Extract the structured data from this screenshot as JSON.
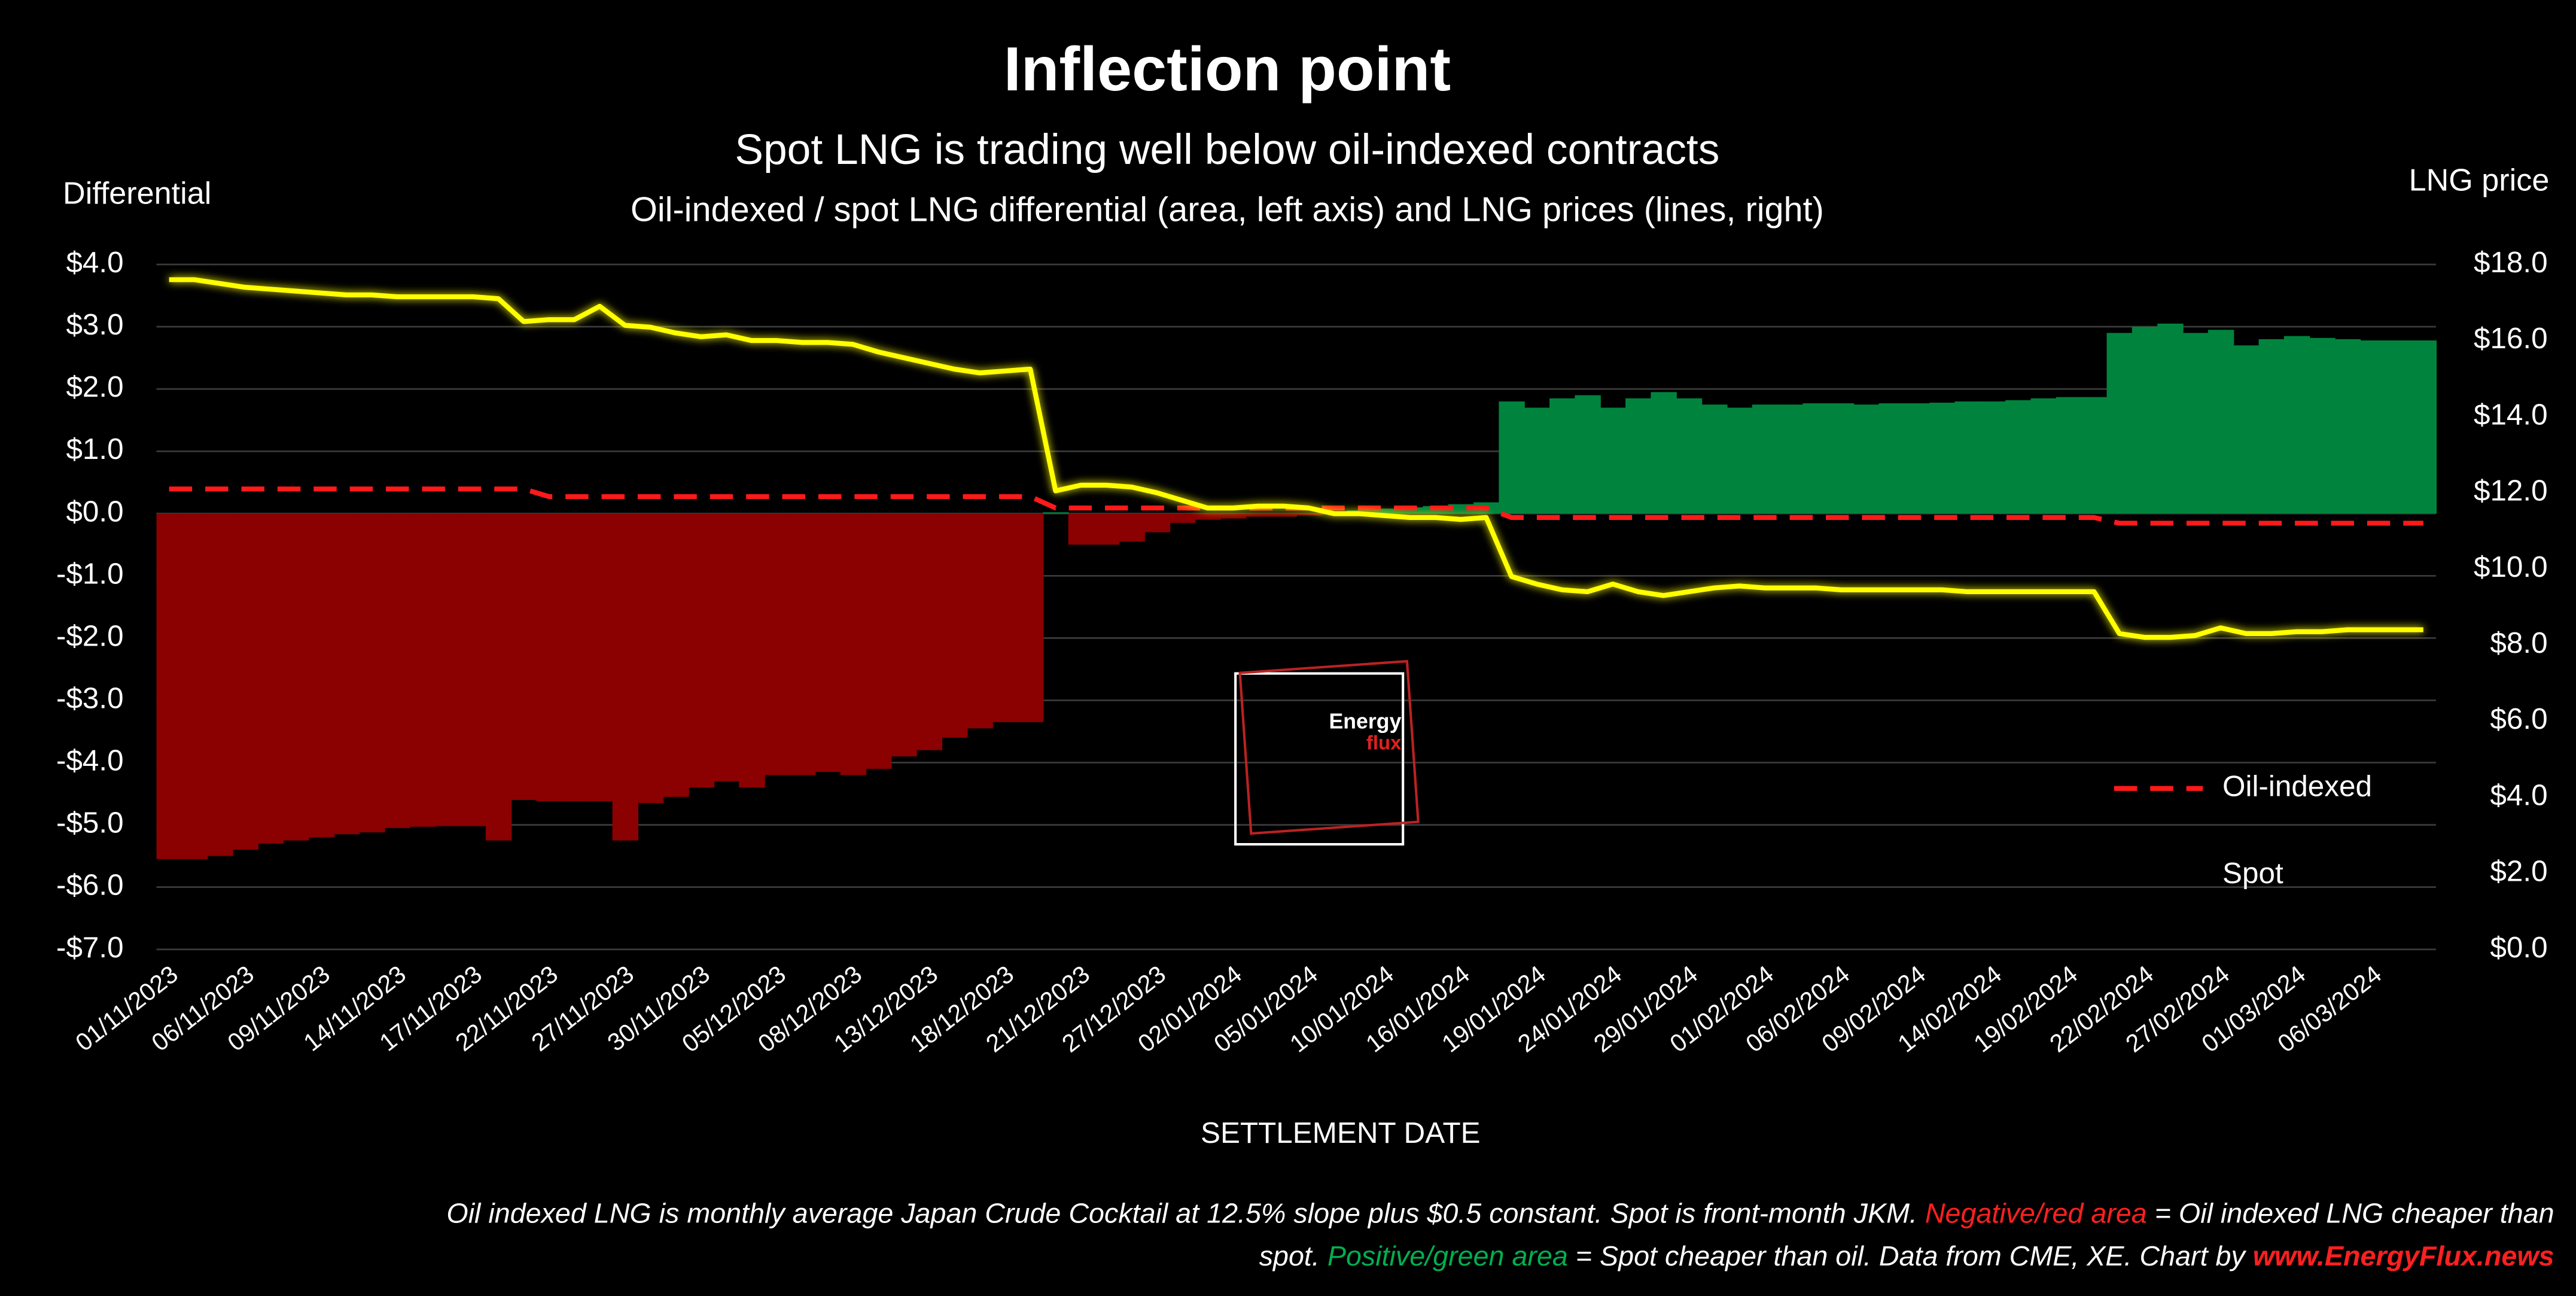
{
  "chart_data": {
    "type": "bar",
    "title": "Inflection point",
    "subtitle": "Spot LNG is trading well below oil-indexed contracts",
    "description": "Oil-indexed / spot LNG differential (area, left axis) and LNG prices (lines, right)",
    "y_label": "Differential",
    "y2_label": "LNG price",
    "x_label": "SETTLEMENT DATE",
    "categories": [
      "01/11/2023",
      null,
      null,
      "06/11/2023",
      null,
      null,
      "09/11/2023",
      null,
      null,
      "14/11/2023",
      null,
      null,
      "17/11/2023",
      null,
      null,
      "22/11/2023",
      null,
      null,
      "27/11/2023",
      null,
      null,
      "30/11/2023",
      null,
      null,
      "05/12/2023",
      null,
      null,
      "08/12/2023",
      null,
      null,
      "13/12/2023",
      null,
      null,
      "18/12/2023",
      null,
      null,
      "21/12/2023",
      null,
      null,
      "27/12/2023",
      null,
      null,
      "02/01/2024",
      null,
      null,
      "05/01/2024",
      null,
      null,
      "10/01/2024",
      null,
      null,
      "16/01/2024",
      null,
      null,
      "19/01/2024",
      null,
      null,
      "24/01/2024",
      null,
      null,
      "29/01/2024",
      null,
      null,
      "01/02/2024",
      null,
      null,
      "06/02/2024",
      null,
      null,
      "09/02/2024",
      null,
      null,
      "14/02/2024",
      null,
      null,
      "19/02/2024",
      null,
      null,
      "22/02/2024",
      null,
      null,
      "27/02/2024",
      null,
      null,
      "01/03/2024",
      null,
      null,
      "06/03/2024",
      null,
      null
    ],
    "bars": {
      "positive_color": "#00843d",
      "negative_color": "#8b0000",
      "values": [
        -5.55,
        -5.55,
        -5.5,
        -5.4,
        -5.3,
        -5.25,
        -5.2,
        -5.15,
        -5.12,
        -5.05,
        -5.03,
        -5.02,
        -5.02,
        -5.25,
        -4.6,
        -4.62,
        -4.62,
        -4.62,
        -5.25,
        -4.65,
        -4.55,
        -4.4,
        -4.3,
        -4.4,
        -4.2,
        -4.2,
        -4.15,
        -4.2,
        -4.1,
        -3.9,
        -3.8,
        -3.6,
        -3.45,
        -3.35,
        -3.35,
        0.02,
        -0.5,
        -0.5,
        -0.45,
        -0.3,
        -0.15,
        -0.1,
        -0.08,
        -0.05,
        -0.05,
        -0.03,
        0.02,
        0.05,
        0.08,
        0.1,
        0.12,
        0.15,
        0.18,
        1.8,
        1.7,
        1.85,
        1.9,
        1.7,
        1.85,
        1.95,
        1.85,
        1.75,
        1.7,
        1.75,
        1.75,
        1.77,
        1.77,
        1.75,
        1.77,
        1.77,
        1.78,
        1.8,
        1.8,
        1.82,
        1.85,
        1.87,
        1.87,
        2.9,
        3.0,
        3.05,
        2.9,
        2.95,
        2.7,
        2.8,
        2.85,
        2.82,
        2.8,
        2.78,
        2.78,
        2.78
      ]
    },
    "series": [
      {
        "name": "Oil-indexed",
        "color": "#ff1a1a",
        "dashed": true,
        "axis": "y2",
        "values": [
          12.1,
          12.1,
          12.1,
          12.1,
          12.1,
          12.1,
          12.1,
          12.1,
          12.1,
          12.1,
          12.1,
          12.1,
          12.1,
          12.1,
          12.1,
          11.9,
          11.9,
          11.9,
          11.9,
          11.9,
          11.9,
          11.9,
          11.9,
          11.9,
          11.9,
          11.9,
          11.9,
          11.9,
          11.9,
          11.9,
          11.9,
          11.9,
          11.9,
          11.9,
          11.9,
          11.6,
          11.6,
          11.6,
          11.6,
          11.6,
          11.6,
          11.6,
          11.6,
          11.6,
          11.6,
          11.6,
          11.6,
          11.6,
          11.6,
          11.6,
          11.6,
          11.6,
          11.6,
          11.35,
          11.35,
          11.35,
          11.35,
          11.35,
          11.35,
          11.35,
          11.35,
          11.35,
          11.35,
          11.35,
          11.35,
          11.35,
          11.35,
          11.35,
          11.35,
          11.35,
          11.35,
          11.35,
          11.35,
          11.35,
          11.35,
          11.35,
          11.35,
          11.2,
          11.2,
          11.2,
          11.2,
          11.2,
          11.2,
          11.2,
          11.2,
          11.2,
          11.2,
          11.2,
          11.2,
          11.2
        ]
      },
      {
        "name": "Spot",
        "color": "#ffff00",
        "dashed": false,
        "axis": "y2",
        "values": [
          17.6,
          17.6,
          17.5,
          17.4,
          17.35,
          17.3,
          17.25,
          17.2,
          17.2,
          17.15,
          17.15,
          17.15,
          17.15,
          17.1,
          16.5,
          16.55,
          16.55,
          16.9,
          16.4,
          16.35,
          16.2,
          16.1,
          16.15,
          16.0,
          16.0,
          15.95,
          15.95,
          15.9,
          15.7,
          15.55,
          15.4,
          15.25,
          15.15,
          15.2,
          15.25,
          12.05,
          12.2,
          12.2,
          12.15,
          12.0,
          11.8,
          11.6,
          11.6,
          11.65,
          11.65,
          11.6,
          11.45,
          11.45,
          11.4,
          11.35,
          11.35,
          11.3,
          11.35,
          9.8,
          9.6,
          9.45,
          9.4,
          9.6,
          9.4,
          9.3,
          9.4,
          9.5,
          9.55,
          9.5,
          9.5,
          9.5,
          9.45,
          9.45,
          9.45,
          9.45,
          9.45,
          9.4,
          9.4,
          9.4,
          9.4,
          9.4,
          9.4,
          8.3,
          8.2,
          8.2,
          8.25,
          8.45,
          8.3,
          8.3,
          8.35,
          8.35,
          8.4,
          8.4,
          8.4,
          8.4
        ]
      }
    ],
    "ylim": [
      -7,
      4
    ],
    "yticks": [
      {
        "value": 4,
        "label": "$4.0"
      },
      {
        "value": 3,
        "label": "$3.0"
      },
      {
        "value": 2,
        "label": "$2.0"
      },
      {
        "value": 1,
        "label": "$1.0"
      },
      {
        "value": 0,
        "label": "$0.0"
      },
      {
        "value": -1,
        "label": "-$1.0"
      },
      {
        "value": -2,
        "label": "-$2.0"
      },
      {
        "value": -3,
        "label": "-$3.0"
      },
      {
        "value": -4,
        "label": "-$4.0"
      },
      {
        "value": -5,
        "label": "-$5.0"
      },
      {
        "value": -6,
        "label": "-$6.0"
      },
      {
        "value": -7,
        "label": "-$7.0"
      }
    ],
    "y2lim": [
      0,
      18
    ],
    "y2ticks": [
      {
        "value": 18,
        "label": "$18.0"
      },
      {
        "value": 16,
        "label": "$16.0"
      },
      {
        "value": 14,
        "label": "$14.0"
      },
      {
        "value": 12,
        "label": "$12.0"
      },
      {
        "value": 10,
        "label": "$10.0"
      },
      {
        "value": 8,
        "label": "$8.0"
      },
      {
        "value": 6,
        "label": "$6.0"
      },
      {
        "value": 4,
        "label": "$4.0"
      },
      {
        "value": 2,
        "label": "$2.0"
      },
      {
        "value": 0,
        "label": "$0.0"
      }
    ],
    "grid": true,
    "legend": "right",
    "logo": {
      "line1": "Energy",
      "line2": "flux"
    },
    "footnote": [
      [
        {
          "text": "Oil indexed LNG is monthly average Japan Crude Cocktail at 12.5% slope plus $0.5 constant. Spot is front-month JKM. ",
          "color": "#ffffff"
        },
        {
          "text": "Negative/red area",
          "color": "#ff2020"
        },
        {
          "text": " = Oil indexed LNG cheaper than",
          "color": "#ffffff"
        }
      ],
      [
        {
          "text": "spot. ",
          "color": "#ffffff"
        },
        {
          "text": "Positive/green area",
          "color": "#00b050"
        },
        {
          "text": " = Spot cheaper than oil. Data from CME, XE. Chart by ",
          "color": "#ffffff"
        },
        {
          "text": "www.EnergyFlux.news",
          "color": "#ff2020",
          "bold": true
        }
      ]
    ]
  }
}
